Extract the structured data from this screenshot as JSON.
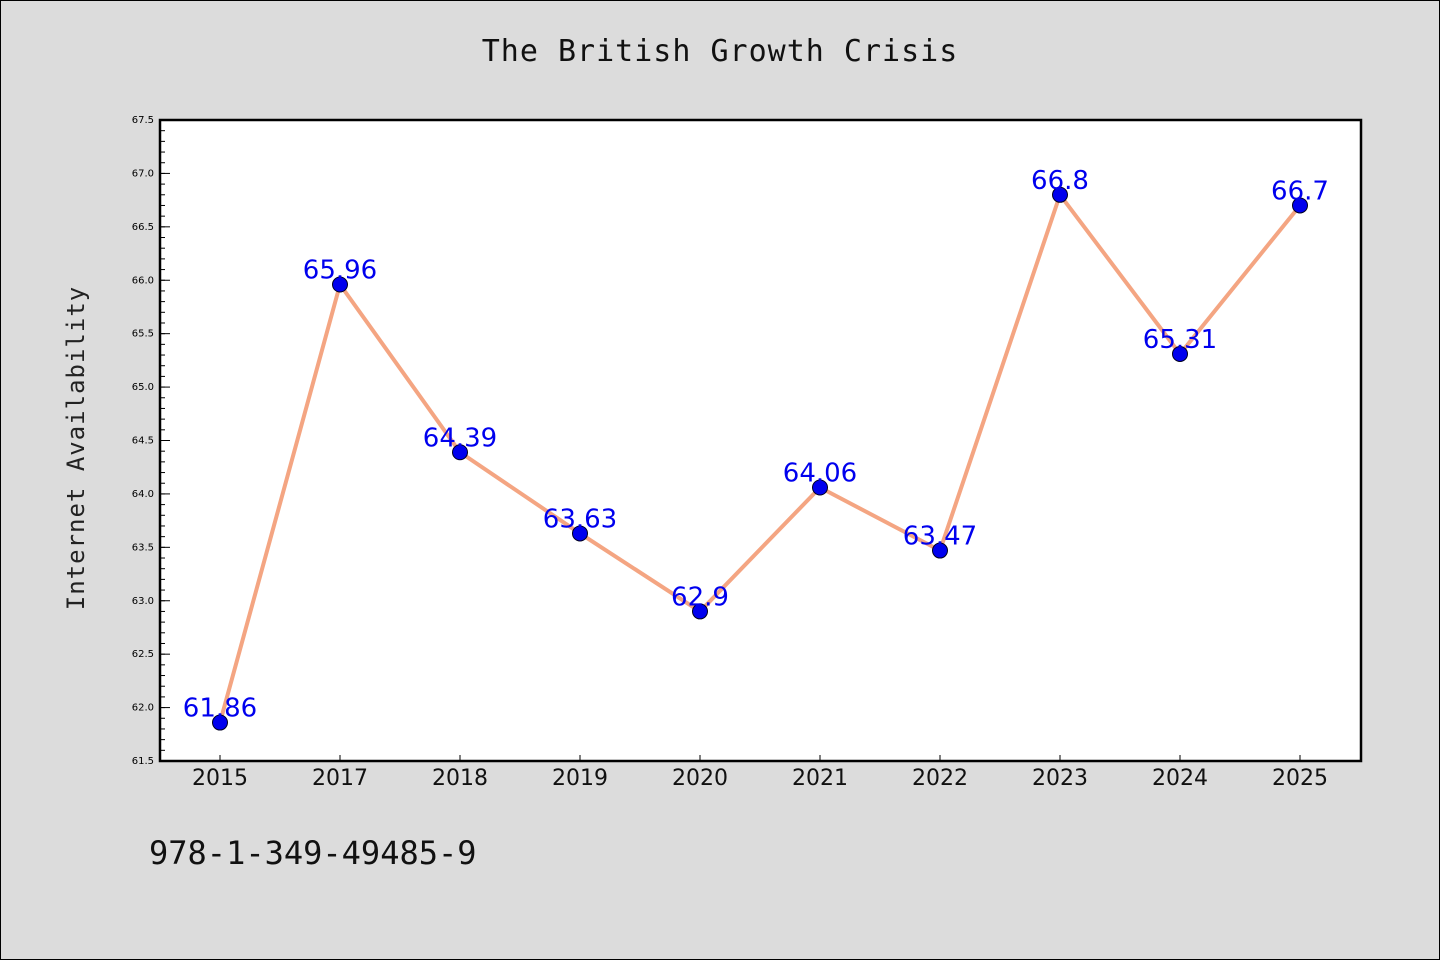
{
  "chart_data": {
    "type": "line",
    "title": "The British Growth Crisis",
    "xlabel": "",
    "ylabel": "Internet Availability",
    "categories": [
      "2015",
      "2017",
      "2018",
      "2019",
      "2020",
      "2021",
      "2022",
      "2023",
      "2024",
      "2025"
    ],
    "values": [
      61.86,
      65.96,
      64.39,
      63.63,
      62.9,
      64.06,
      63.47,
      66.8,
      65.31,
      66.7
    ],
    "data_labels": [
      "61.86",
      "65.96",
      "64.39",
      "63.63",
      "62.9",
      "64.06",
      "63.47",
      "66.8",
      "65.31",
      "66.7"
    ],
    "ylim": [
      61.5,
      67.5
    ],
    "y_ticks": [
      "61.5",
      "62.0",
      "62.5",
      "63.0",
      "63.5",
      "64.0",
      "64.5",
      "65.0",
      "65.5",
      "66.0",
      "66.5",
      "67.0",
      "67.5"
    ],
    "grid": false,
    "legend": "none",
    "line_color": "#f4a582",
    "marker_color": "#0000ee",
    "label_color": "#0000ee"
  },
  "footer": {
    "isbn": "978-1-349-49485-9"
  }
}
